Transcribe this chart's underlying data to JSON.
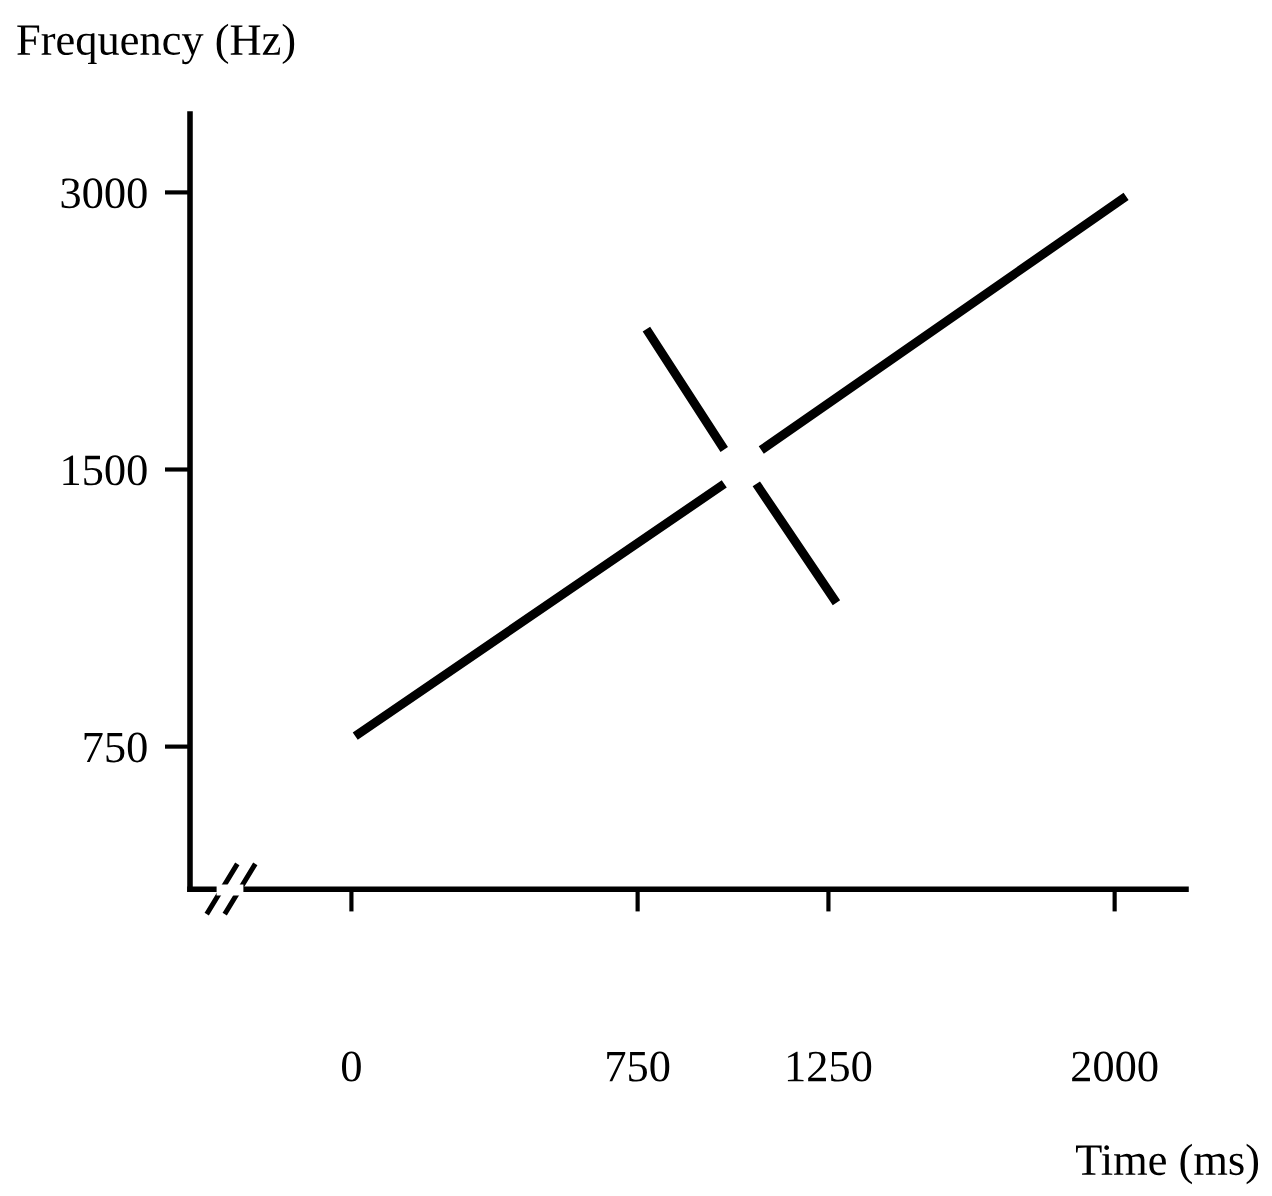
{
  "chart_data": {
    "type": "line",
    "xlabel": "Time (ms)",
    "ylabel": "Frequency (Hz)",
    "log": "y",
    "xlim": [
      -423,
      2187
    ],
    "ylim": [
      525,
      3650
    ],
    "xticks": [
      0,
      750,
      1250,
      2000
    ],
    "yticks": [
      750,
      1500,
      3000
    ],
    "grid": false,
    "marker": "none",
    "line_style": "solid",
    "series": [
      {
        "color": "#000000",
        "x": [
          10,
          977,
          1025,
          1074,
          2030
        ],
        "values": [
          770,
          1447,
          null,
          1575,
          2970
        ]
      },
      {
        "color": "#000000",
        "x": [
          773,
          977,
          1019,
          1061,
          1271
        ],
        "values": [
          2131,
          1577,
          null,
          1447,
          1075
        ]
      }
    ]
  }
}
